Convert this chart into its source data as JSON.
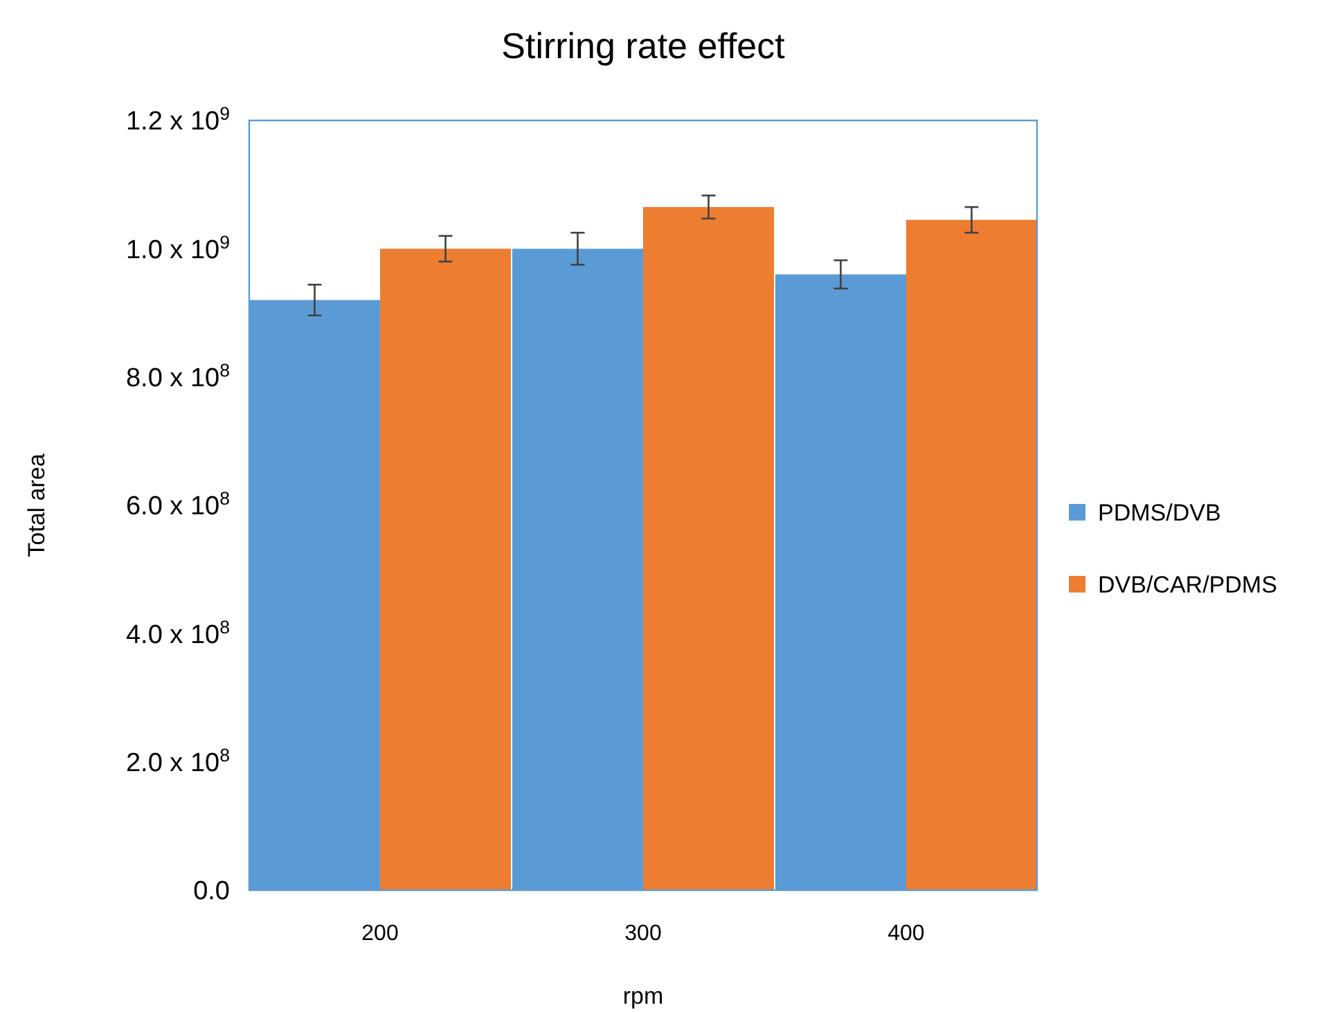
{
  "chart_data": {
    "type": "bar",
    "title": "Stirring rate effect",
    "xlabel": "rpm",
    "ylabel": "Total area",
    "categories": [
      "200",
      "300",
      "400"
    ],
    "series": [
      {
        "name": "PDMS/DVB",
        "color": "#5b9bd5",
        "values": [
          920000000,
          1000000000,
          960000000
        ],
        "errors": [
          24000000,
          25000000,
          22000000
        ]
      },
      {
        "name": "DVB/CAR/PDMS",
        "color": "#ed7d31",
        "values": [
          1000000000,
          1065000000,
          1045000000
        ],
        "errors": [
          20000000,
          18000000,
          20000000
        ]
      }
    ],
    "ylim": [
      0,
      1200000000
    ],
    "yticks": [
      {
        "value": 0,
        "label": "0.0"
      },
      {
        "value": 200000000,
        "label": "2.0 x 10$^{8}$"
      },
      {
        "value": 400000000,
        "label": "4.0 x 10$^{8}$"
      },
      {
        "value": 600000000,
        "label": "6.0 x 10$^{8}$"
      },
      {
        "value": 800000000,
        "label": "8.0 x 10$^{8}$"
      },
      {
        "value": 1000000000,
        "label": "1.0 x 10$^{9}$"
      },
      {
        "value": 1200000000,
        "label": "1.2 x 10$^{9}$"
      }
    ],
    "grid": false,
    "legend": "right"
  }
}
